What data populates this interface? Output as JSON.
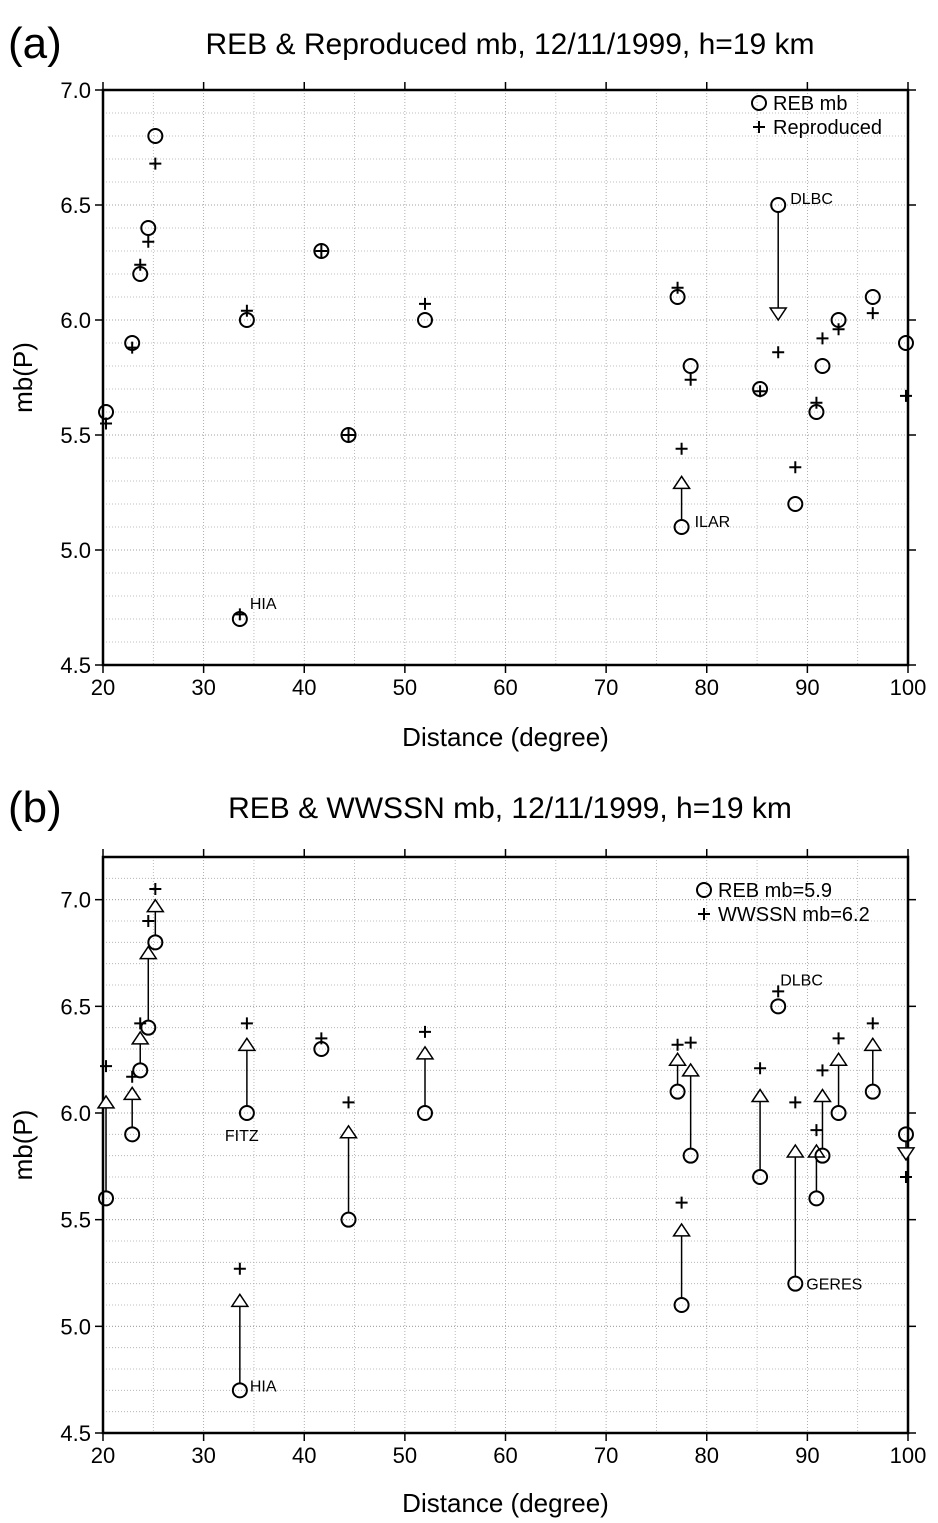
{
  "chart_data": [
    {
      "type": "scatter",
      "panel": "(a)",
      "title": "REB & Reproduced mb, 12/11/1999, h=19 km",
      "xlabel": "Distance (degree)",
      "ylabel": "mb(P)",
      "x": [
        20.3,
        22.9,
        23.7,
        24.5,
        25.2,
        33.6,
        34.3,
        41.7,
        44.4,
        52.0,
        77.1,
        77.5,
        78.4,
        85.3,
        87.1,
        88.8,
        90.9,
        91.5,
        93.1,
        96.5,
        99.8
      ],
      "series": [
        {
          "name": "REB mb",
          "marker": "circle",
          "color": "#000000",
          "values": [
            5.6,
            5.9,
            6.2,
            6.4,
            6.8,
            4.7,
            6.0,
            6.3,
            5.5,
            6.0,
            6.1,
            5.1,
            5.8,
            5.7,
            6.5,
            5.2,
            5.6,
            5.8,
            6.0,
            6.1,
            5.9
          ]
        },
        {
          "name": "Reproduced",
          "marker": "plus",
          "color": "#000000",
          "values": [
            5.55,
            5.88,
            6.24,
            6.34,
            6.68,
            4.72,
            6.04,
            6.3,
            5.5,
            6.07,
            6.14,
            5.44,
            5.74,
            5.69,
            5.86,
            5.36,
            5.64,
            5.92,
            5.96,
            6.03,
            5.67
          ]
        }
      ],
      "arrow_tips": [
        null,
        null,
        null,
        null,
        null,
        null,
        null,
        null,
        null,
        null,
        null,
        5.32,
        null,
        null,
        6.0,
        null,
        null,
        null,
        null,
        null,
        null
      ],
      "point_labels": [
        null,
        null,
        null,
        null,
        null,
        "HIA",
        null,
        null,
        null,
        null,
        null,
        "ILAR",
        null,
        null,
        "DLBC",
        null,
        null,
        null,
        null,
        null,
        null
      ],
      "xlim": [
        20,
        100
      ],
      "ylim": [
        4.5,
        7.0
      ],
      "xticks": [
        20,
        30,
        40,
        50,
        60,
        70,
        80,
        90,
        100
      ],
      "yticks": [
        4.5,
        {
          "value": 5,
          "label": "5.0"
        },
        5.5,
        {
          "value": 6,
          "label": "6.0"
        },
        6.5,
        {
          "value": 7,
          "label": "7.0"
        }
      ],
      "grid": true,
      "legend": "upper right"
    },
    {
      "type": "scatter",
      "panel": "(b)",
      "title": "REB & WWSSN mb, 12/11/1999, h=19 km",
      "xlabel": "Distance (degree)",
      "ylabel": "mb(P)",
      "x": [
        20.3,
        22.9,
        23.7,
        24.5,
        25.2,
        33.6,
        34.3,
        41.7,
        44.4,
        52.0,
        77.1,
        77.5,
        78.4,
        85.3,
        87.1,
        88.8,
        90.9,
        91.5,
        93.1,
        96.5,
        99.8
      ],
      "series": [
        {
          "name": "REB mb=5.9",
          "marker": "circle",
          "color": "#000000",
          "values": [
            5.6,
            5.9,
            6.2,
            6.4,
            6.8,
            4.7,
            6.0,
            6.3,
            5.5,
            6.0,
            6.1,
            5.1,
            5.8,
            5.7,
            6.5,
            5.2,
            5.6,
            5.8,
            6.0,
            6.1,
            5.9
          ]
        },
        {
          "name": "WWSSN mb=6.2",
          "marker": "plus",
          "color": "#000000",
          "values": [
            6.22,
            6.17,
            6.42,
            6.9,
            7.05,
            5.27,
            6.42,
            6.35,
            6.05,
            6.38,
            6.32,
            5.58,
            6.33,
            6.21,
            6.57,
            6.05,
            5.92,
            6.2,
            6.35,
            6.42,
            5.7
          ]
        }
      ],
      "arrow_tips": [
        6.08,
        6.12,
        6.38,
        6.78,
        7.0,
        5.15,
        6.35,
        null,
        5.94,
        6.31,
        6.28,
        5.48,
        6.23,
        6.11,
        null,
        5.85,
        5.85,
        6.11,
        6.28,
        6.35,
        5.78
      ],
      "point_labels": [
        null,
        null,
        null,
        null,
        null,
        "HIA",
        "FITZ",
        null,
        null,
        null,
        null,
        null,
        null,
        null,
        "DLBC",
        "GERES",
        null,
        null,
        null,
        null,
        null
      ],
      "xlim": [
        20,
        100
      ],
      "ylim": [
        4.5,
        7.2
      ],
      "xticks": [
        20,
        30,
        40,
        50,
        60,
        70,
        80,
        90,
        100
      ],
      "yticks": [
        4.5,
        {
          "value": 5,
          "label": "5.0"
        },
        5.5,
        {
          "value": 6,
          "label": "6.0"
        },
        6.5,
        {
          "value": 7,
          "label": "7.0"
        }
      ],
      "grid": true,
      "legend": "upper right"
    }
  ]
}
